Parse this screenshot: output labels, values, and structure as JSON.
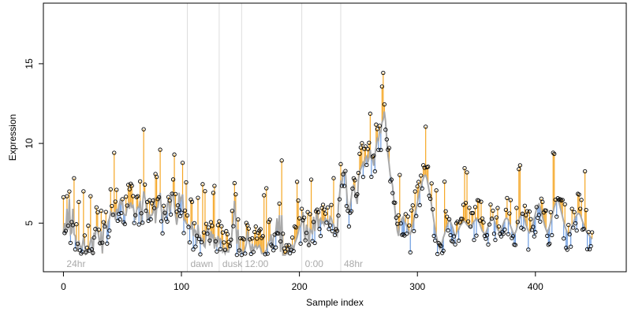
{
  "chart_data": {
    "type": "scatter",
    "xlabel": "Sample index",
    "ylabel": "Expression",
    "xlim": [
      -17,
      477
    ],
    "ylim": [
      1.95,
      18.8
    ],
    "xticks": [
      0,
      100,
      200,
      300,
      400
    ],
    "yticks": [
      5,
      10,
      15
    ],
    "xtick_labels": [
      "0",
      "100",
      "200",
      "300",
      "400"
    ],
    "ytick_labels": [
      "5",
      "10",
      "15"
    ],
    "grid": false,
    "legend": "none",
    "segment_boundaries": [
      0,
      105,
      132,
      151,
      202,
      235
    ],
    "segments": [
      {
        "label": "24hr",
        "start": 0
      },
      {
        "label": "dawn",
        "start": 105
      },
      {
        "label": "dusk",
        "start": 132
      },
      {
        "label": "12:00",
        "start": 151
      },
      {
        "label": "0:00",
        "start": 202
      },
      {
        "label": "48hr",
        "start": 235
      }
    ],
    "series": [
      {
        "values": [
          4.4,
          5.0,
          4.3,
          5.9,
          4.6,
          6.5,
          4.3,
          4.4,
          5.9,
          4.3,
          4.2,
          3.7,
          3.2,
          3.9,
          3.6,
          3.4,
          3.6,
          4.1,
          3.5,
          3.1,
          3.3,
          3.2,
          3.5,
          3.9,
          4.1,
          3.0,
          4.4,
          4.2,
          4.8,
          4.6,
          4.1,
          3.6,
          4.5,
          3.1,
          4.7,
          5.1,
          4.8,
          4.6,
          5.1,
          5.3,
          5.7,
          5.6,
          5.5,
          5.7,
          5.2,
          5.9,
          5.6,
          6.1,
          6.4,
          6.2,
          6.4,
          5.6,
          5.5,
          5.5,
          6.0,
          6.2,
          5.9,
          6.3,
          6.0,
          6.1,
          5.6,
          5.2,
          5.8,
          6.0,
          6.0,
          6.4,
          5.0,
          6.1,
          7.0,
          6.6,
          6.3,
          5.2,
          5.7,
          5.3,
          5.5,
          5.5,
          5.7,
          6.6,
          5.0,
          5.9,
          6.0,
          6.5,
          6.9,
          5.8,
          5.1,
          5.9,
          5.5,
          5.5,
          6.2,
          6.4,
          5.7,
          6.1,
          6.9,
          6.9,
          6.1,
          5.5,
          4.9,
          5.4,
          6.9,
          6.4,
          6.6,
          6.8,
          5.2,
          5.2,
          5.0,
          4.9,
          4.9,
          4.8,
          4.6,
          5.1,
          4.2,
          4.6,
          4.5,
          3.7,
          4.9,
          4.1,
          4.2,
          3.9,
          4.0,
          3.6,
          3.5,
          4.4,
          4.6,
          4.6,
          3.6,
          4.5,
          4.1,
          4.3,
          3.4,
          4.1,
          3.5,
          4.2,
          3.8,
          4.0,
          3.9,
          3.2,
          3.3,
          3.1,
          3.4,
          3.2,
          3.2,
          3.7,
          3.6,
          4.6,
          5.1,
          6.4,
          5.3,
          3.7,
          4.6,
          3.2,
          3.4,
          3.3,
          3.1,
          3.2,
          3.4,
          3.7,
          4.5,
          4.0,
          3.6,
          3.2,
          3.7,
          3.3,
          3.5,
          3.6,
          3.4,
          3.5,
          3.6,
          3.4,
          3.1,
          3.1,
          3.1,
          3.2,
          3.3,
          3.6,
          3.8,
          3.9,
          4.3,
          3.5,
          4.1,
          4.2,
          4.5,
          5.3,
          4.3,
          5.5,
          3.2,
          5.5,
          3.0,
          3.0,
          3.0,
          3.1,
          3.1,
          3.5,
          3.2,
          3.6,
          3.6,
          3.3,
          3.7,
          3.9,
          4.1,
          4.4,
          4.8,
          4.8,
          5.1,
          5.7,
          4.4,
          3.9,
          4.9,
          4.6,
          3.5,
          4.6,
          4.5,
          4.3,
          5.4,
          4.5,
          5.2,
          5.8,
          4.7,
          5.2,
          5.3,
          5.0,
          5.1,
          4.9,
          5.3,
          5.2,
          5.2,
          4.8,
          5.4,
          5.3,
          5.0,
          4.9,
          4.6,
          4.3,
          4.2,
          6.1,
          6.8,
          7.6,
          7.5,
          8.2,
          8.1,
          8.2,
          7.0,
          5.9,
          5.7,
          6.1,
          6.6,
          7.2,
          7.4,
          6.9,
          6.6,
          6.2,
          7.7,
          8.2,
          8.4,
          8.6,
          8.8,
          8.6,
          9.1,
          9.2,
          8.8,
          9.1,
          9.6,
          9.0,
          9.0,
          8.6,
          9.3,
          9.8,
          10.3,
          10.2,
          10.8,
          10.7,
          11.3,
          11.5,
          12.0,
          11.4,
          10.3,
          9.3,
          8.7,
          8.0,
          7.8,
          7.3,
          6.5,
          5.8,
          5.1,
          4.5,
          4.2,
          4.9,
          5.1,
          5.3,
          5.4,
          5.1,
          5.0,
          4.8,
          4.6,
          4.4,
          4.3,
          4.6,
          4.8,
          5.2,
          5.6,
          5.9,
          6.3,
          6.7,
          7.0,
          7.2,
          7.6,
          7.8,
          8.0,
          8.0,
          7.8,
          7.4,
          7.0,
          6.6,
          6.1,
          5.6,
          5.1,
          4.6,
          4.2,
          3.9,
          3.6,
          3.4,
          3.6,
          3.8,
          4.1,
          4.3,
          4.6,
          4.8,
          5.0,
          5.2,
          5.1,
          4.9,
          4.7,
          4.4,
          4.2,
          4.3,
          4.5,
          4.6,
          4.8,
          4.9,
          5.0,
          5.1,
          5.1,
          5.0,
          4.9,
          4.8,
          4.8,
          4.7,
          4.8,
          5.0,
          5.1,
          5.2,
          5.3,
          5.2,
          5.1,
          4.9,
          4.7,
          4.5,
          4.4,
          4.3,
          4.4,
          4.6,
          4.8,
          5.0,
          5.2,
          5.3,
          5.3,
          5.2,
          5.0,
          4.8,
          4.6,
          4.5,
          4.4,
          4.6,
          4.8,
          5.0,
          5.2,
          5.3,
          5.3,
          5.2,
          5.0,
          4.8,
          4.6,
          4.4,
          4.3,
          4.4,
          4.6,
          4.9,
          5.2,
          5.4,
          5.5,
          5.6,
          5.4,
          5.2,
          4.9,
          4.7,
          4.5,
          4.4,
          4.5,
          4.7,
          5.0,
          5.3,
          5.6,
          5.9,
          6.1,
          6.2,
          6.0,
          5.7,
          5.4,
          5.1,
          4.8,
          4.6,
          4.4,
          4.6,
          4.8,
          5.1,
          5.4,
          5.7,
          6.0,
          6.2,
          6.4,
          6.5,
          6.3,
          6.0,
          5.7,
          5.4,
          5.1,
          4.8,
          4.6,
          4.4,
          4.3,
          4.4,
          4.6,
          4.8,
          5.0,
          5.2,
          5.4,
          5.5,
          5.6,
          5.6,
          5.5,
          5.3,
          5.1,
          4.9,
          4.7,
          4.5,
          4.4,
          4.3,
          4.2,
          4.1,
          4.0
        ]
      }
    ]
  }
}
